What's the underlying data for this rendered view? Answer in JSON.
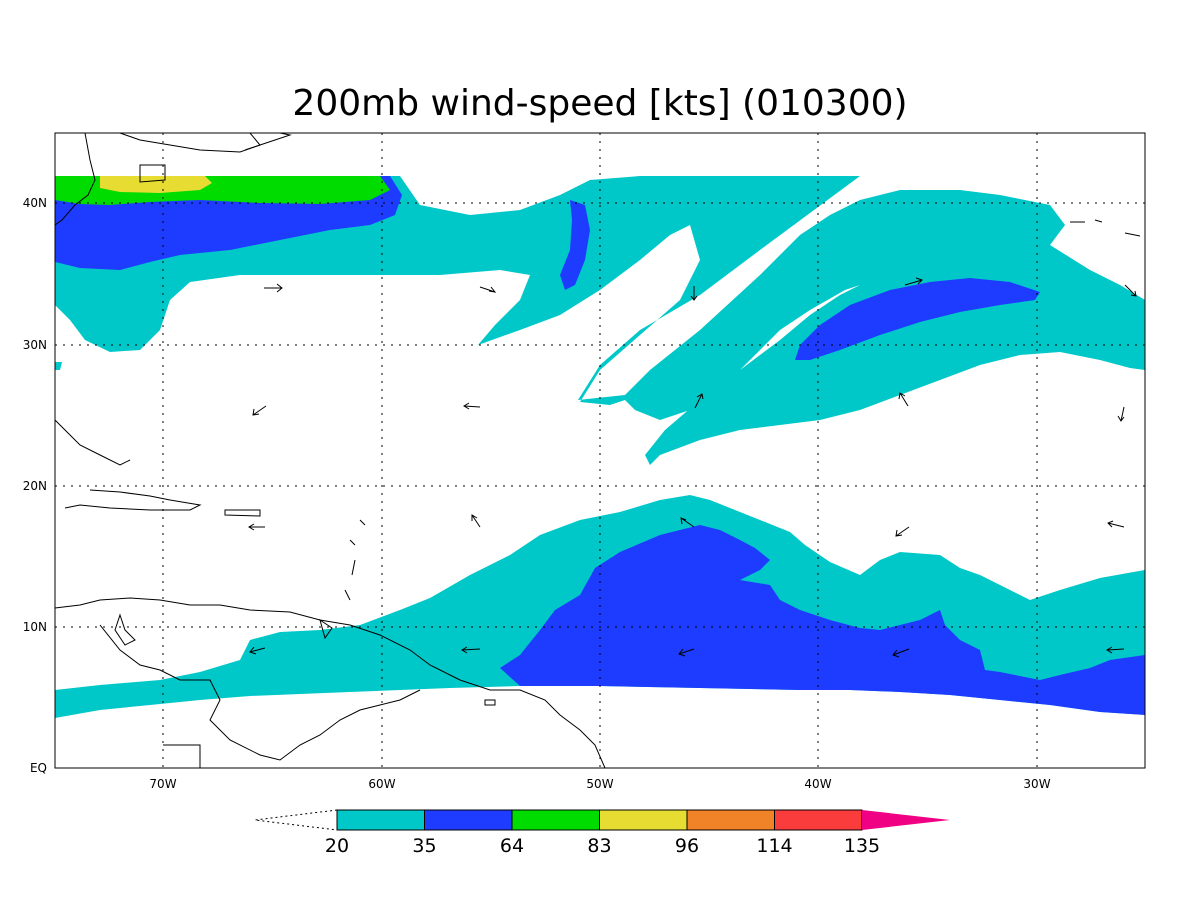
{
  "title": "200mb wind-speed [kts] (010300)",
  "map": {
    "lon_range": [
      "75W",
      "25W"
    ],
    "lat_range": [
      "EQ",
      "45N"
    ],
    "gridlines": "dotted",
    "lon_labels": [
      "70W",
      "60W",
      "50W",
      "40W",
      "30W"
    ],
    "lat_labels": [
      "EQ",
      "10N",
      "20N",
      "30N",
      "40N"
    ],
    "projection": "lat-lon"
  },
  "colorbar": {
    "labels": [
      "20",
      "35",
      "64",
      "83",
      "96",
      "114",
      "135"
    ],
    "colors": [
      "#00c8c8",
      "#1e3cff",
      "#00dc00",
      "#e6dc32",
      "#f08228",
      "#fa3c3c",
      "#f00082"
    ],
    "colors_meaning": "wind speed bands (kts): 20-35, 35-64, 64-83, 83-96, 96-114, 114-135, >135"
  }
}
